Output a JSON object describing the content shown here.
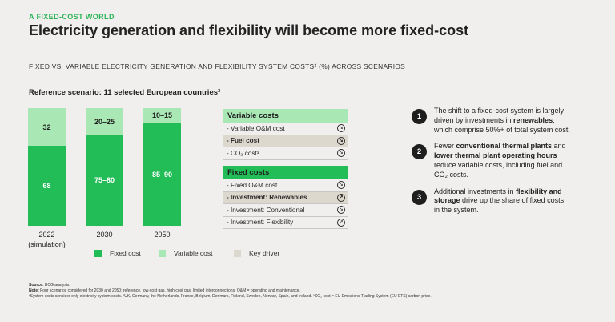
{
  "kicker": "A FIXED-COST WORLD",
  "title": "Electricity generation and flexibility will become more fixed-cost",
  "subtitle": "FIXED VS. VARIABLE ELECTRICITY GENERATION AND FLEXIBILITY SYSTEM COSTS¹ (%) ACROSS SCENARIOS",
  "scenario_label": "Reference scenario: 11 selected European countries²",
  "colors": {
    "fixed": "#22bd57",
    "variable": "#a9e8b5",
    "key_driver": "#ddd8cd",
    "panel_variable_head": "#a9e8b5",
    "panel_fixed_head": "#22bd57"
  },
  "chart_data": {
    "type": "bar",
    "stacked": true,
    "title": "Reference scenario: 11 selected European countries²",
    "categories": [
      "2022\n(simulation)",
      "2030",
      "2050"
    ],
    "series": [
      {
        "name": "Fixed cost",
        "values": [
          68,
          77.5,
          87.5
        ],
        "labels": [
          "68",
          "75–80",
          "85–90"
        ]
      },
      {
        "name": "Variable cost",
        "values": [
          32,
          22.5,
          12.5
        ],
        "labels": [
          "32",
          "20–25",
          "10–15"
        ]
      }
    ],
    "ylim": [
      0,
      100
    ],
    "legend": [
      "Fixed cost",
      "Variable cost",
      "Key driver"
    ],
    "legend_position": "bottom"
  },
  "legend": {
    "fixed": "Fixed cost",
    "variable": "Variable cost",
    "key": "Key driver"
  },
  "variable_costs": {
    "heading": "Variable costs",
    "items": [
      {
        "label": "- Variable O&M cost",
        "icon": "↘",
        "key": false
      },
      {
        "label": "- Fuel cost",
        "icon": "↘",
        "key": true
      },
      {
        "label": "- CO₂ cost³",
        "icon": "↘",
        "key": false
      }
    ]
  },
  "fixed_costs": {
    "heading": "Fixed costs",
    "items": [
      {
        "label": "- Fixed O&M cost",
        "icon": "↘",
        "key": false
      },
      {
        "label": "- Investment: Renewables",
        "icon": "↗",
        "key": true
      },
      {
        "label": "- Investment: Conventional",
        "icon": "↘",
        "key": false
      },
      {
        "label": "- Investment: Flexibility",
        "icon": "↗",
        "key": false
      }
    ]
  },
  "points": [
    {
      "num": "1",
      "segments": [
        {
          "t": "The shift to a fixed-cost system is largely driven by investments in ",
          "b": false
        },
        {
          "t": "renewables",
          "b": true
        },
        {
          "t": ", which comprise 50%+ of total system cost.",
          "b": false
        }
      ]
    },
    {
      "num": "2",
      "segments": [
        {
          "t": "Fewer ",
          "b": false
        },
        {
          "t": "conventional thermal plants",
          "b": true
        },
        {
          "t": " and ",
          "b": false
        },
        {
          "t": "lower thermal plant operating hours",
          "b": true
        },
        {
          "t": " reduce variable costs, including fuel and CO₂ costs.",
          "b": false
        }
      ]
    },
    {
      "num": "3",
      "segments": [
        {
          "t": "Additional investments in ",
          "b": false
        },
        {
          "t": "flexibility and storage",
          "b": true
        },
        {
          "t": " drive up the share of fixed costs in the system.",
          "b": false
        }
      ]
    }
  ],
  "footer": {
    "source_label": "Source:",
    "source": " BCG analysis.",
    "note_label": "Note:",
    "note": " Four scenarios considered for 2030 and 2050: reference, low-cost gas, high-cost gas, limited interconnections; O&M = operating and maintenance.",
    "footnote": "¹System costs consider only electricity system costs. ²UK, Germany, the Netherlands, France, Belgium, Denmark, Finland, Sweden, Norway, Spain, and Ireland. ³CO₂ cost = EU Emissions Trading System (EU ETS) carbon price."
  }
}
